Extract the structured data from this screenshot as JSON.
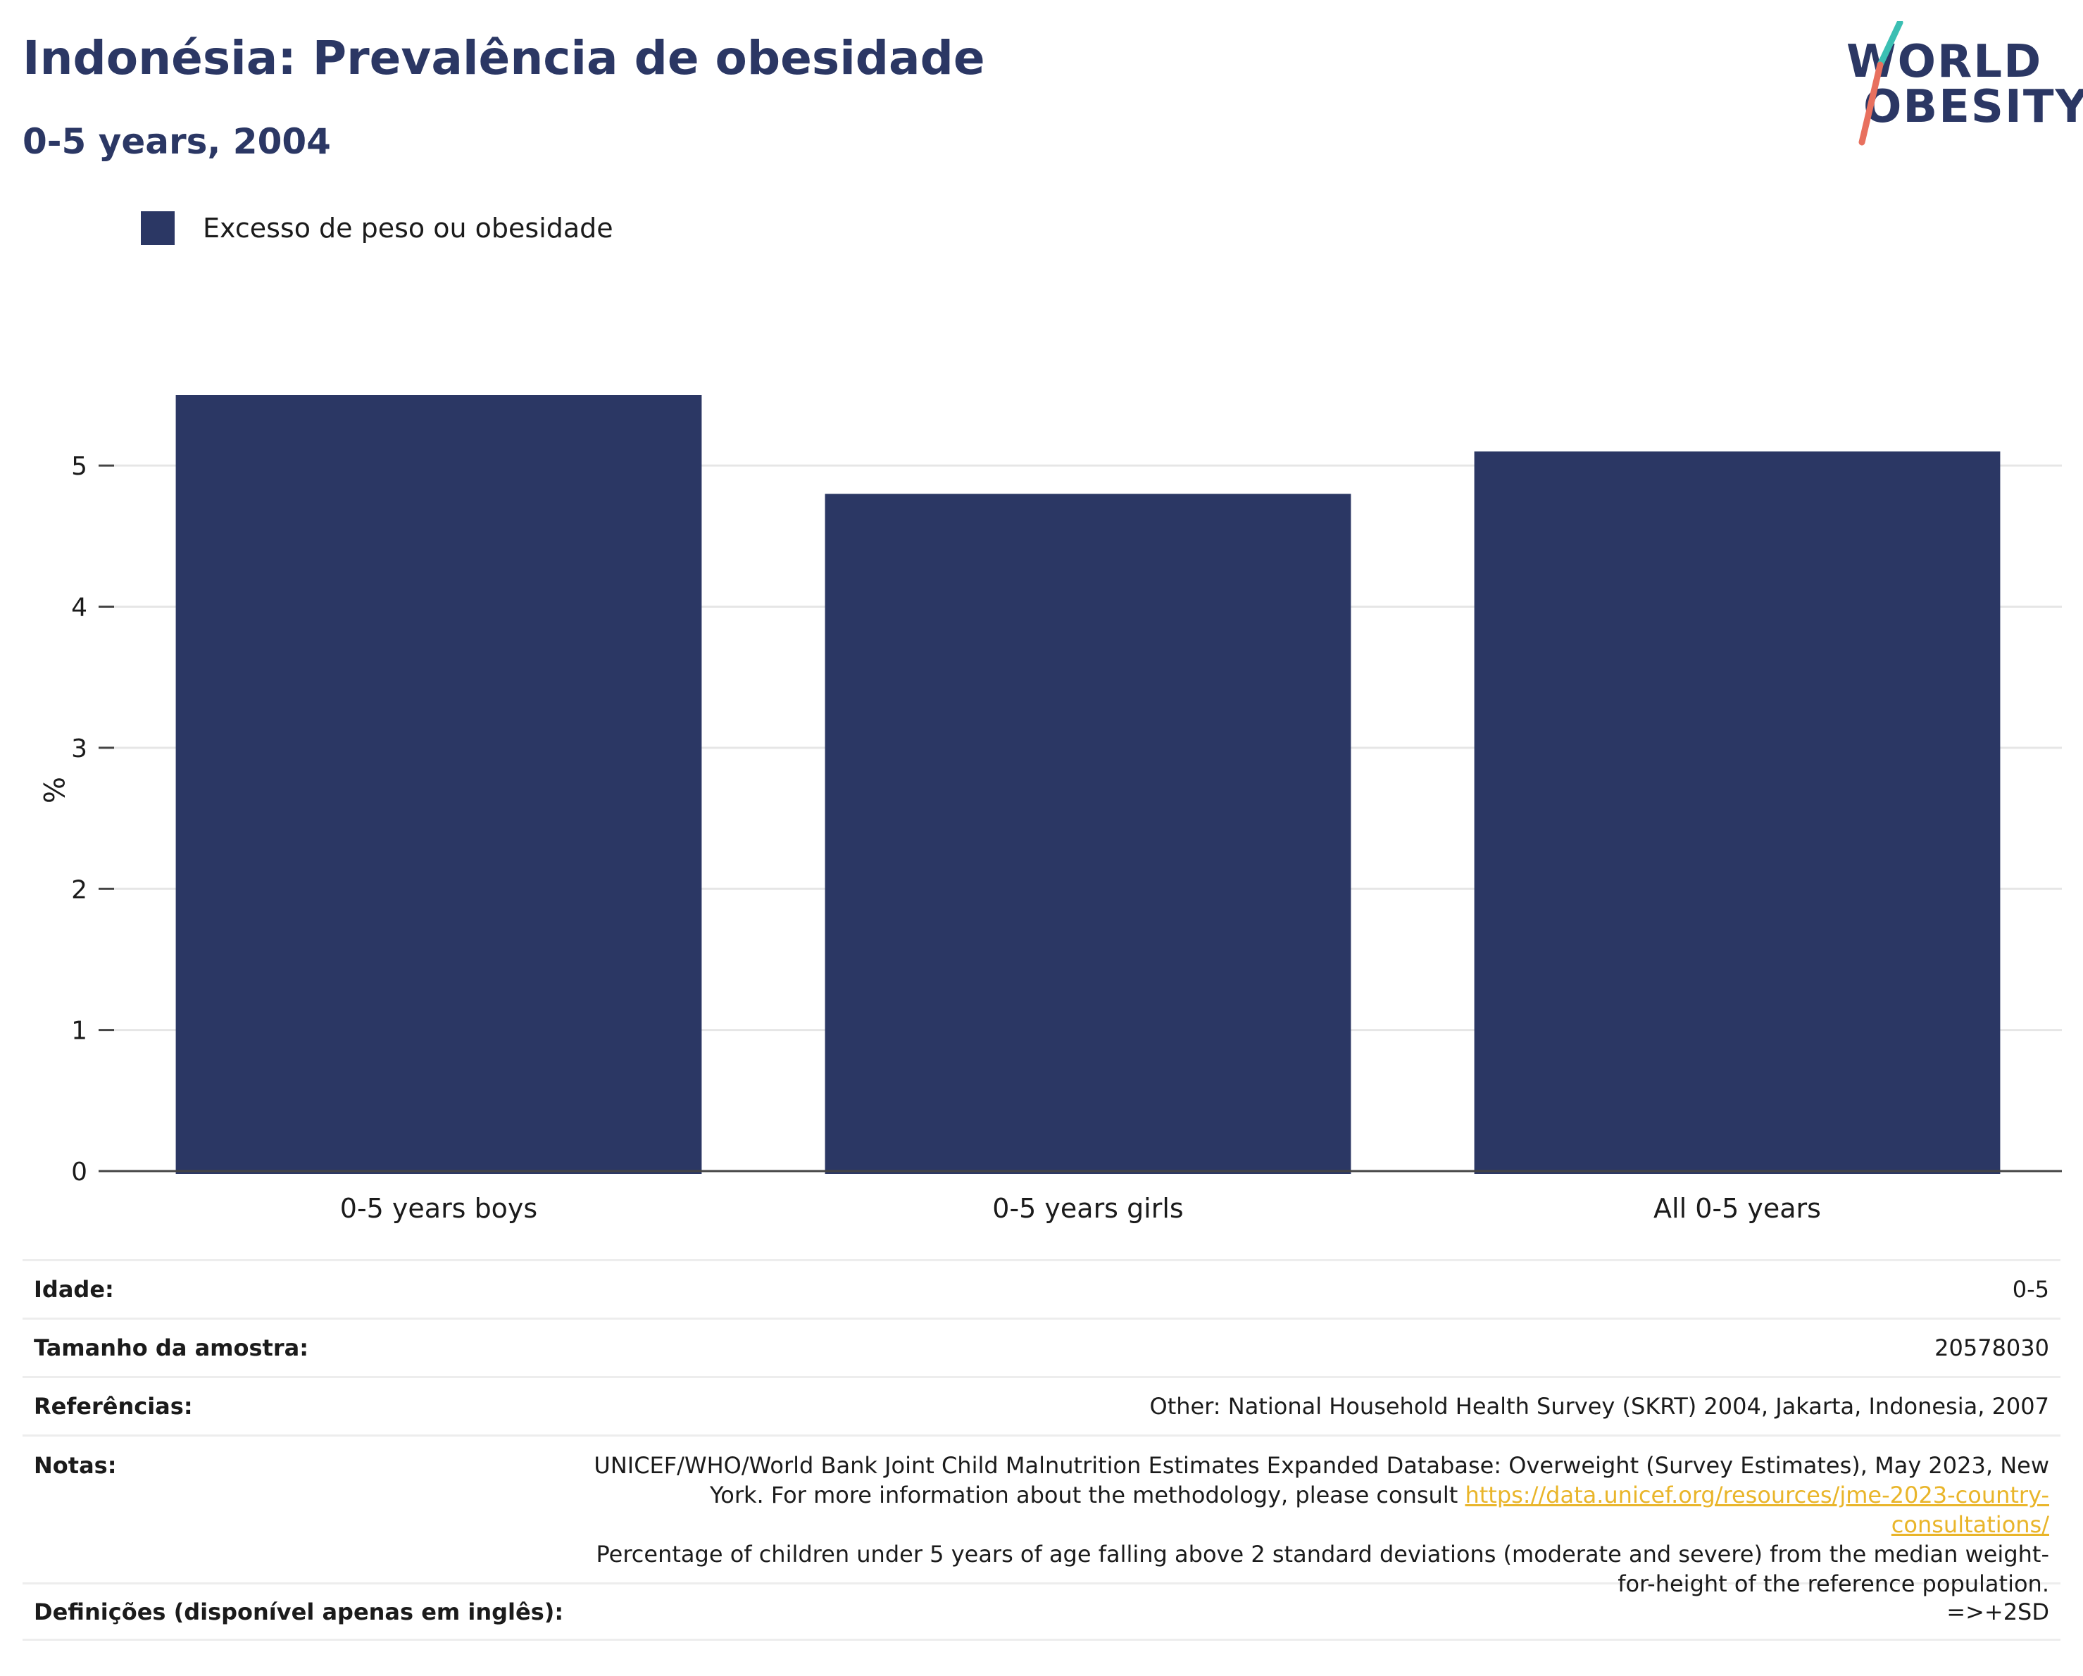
{
  "header": {
    "title": "Indonésia: Prevalência de obesidade",
    "subtitle": "0-5 years, 2004"
  },
  "logo": {
    "line1": "WORLD",
    "line2": "OBESITY",
    "colors": {
      "text": "#2b3764",
      "slash_top": "#3bbfb3",
      "slash_bottom": "#e8705e"
    }
  },
  "legend": {
    "items": [
      {
        "label": "Excesso de peso ou obesidade",
        "color": "#2b3764"
      }
    ]
  },
  "chart_data": {
    "type": "bar",
    "categories": [
      "0-5 years boys",
      "0-5 years girls",
      "All 0-5 years"
    ],
    "series": [
      {
        "name": "Excesso de peso ou obesidade",
        "values": [
          5.5,
          4.8,
          5.1
        ],
        "color": "#2b3764"
      }
    ],
    "ylabel": "%",
    "xlabel": "",
    "ylim": [
      0,
      5.5
    ],
    "yticks": [
      0,
      1,
      2,
      3,
      4,
      5
    ],
    "grid": true,
    "legend_position": "top-left"
  },
  "table": {
    "rows": [
      {
        "label": "Idade:",
        "value": "0-5"
      },
      {
        "label": "Tamanho da amostra:",
        "value": "20578030"
      },
      {
        "label": "Referências:",
        "value": "Other: National Household Health Survey (SKRT) 2004, Jakarta, Indonesia, 2007"
      },
      {
        "label": "Notas:",
        "value_part1": "UNICEF/WHO/World Bank Joint Child Malnutrition Estimates Expanded Database: Overweight (Survey Estimates), May 2023, New York. For more information about the methodology, please consult ",
        "link": "https://data.unicef.org/resources/jme-2023-country-consultations/",
        "value_part2": "Percentage of children under 5 years of age falling above 2 standard deviations (moderate and severe) from the median weight-for-height of the reference population."
      },
      {
        "label": "Definições (disponível apenas em inglês):",
        "value": "=>+2SD"
      }
    ]
  }
}
